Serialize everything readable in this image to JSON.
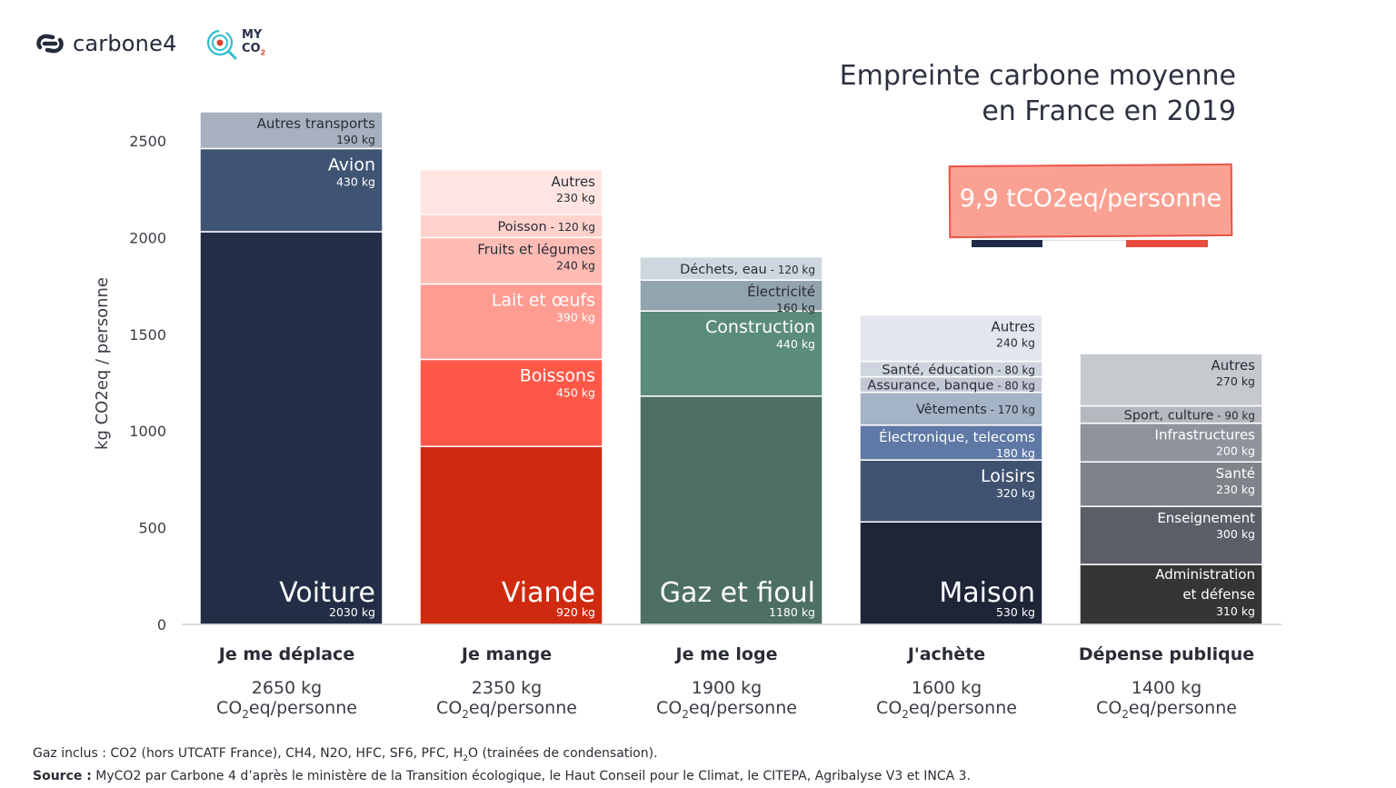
{
  "brand": {
    "logo1": "carbone4",
    "logo2_line1": "MY",
    "logo2_line2": "CO",
    "logo2_sub": "2"
  },
  "title_line1": "Empreinte carbone moyenne",
  "title_line2": "en France en 2019",
  "total_badge": "9,9 tCO2eq/personne",
  "colors": {
    "voiture": "#232e46",
    "avion": "#3f5473",
    "autres_transports": "#a7b0be",
    "viande": "#cf2a10",
    "boissons": "#ff5849",
    "lait": "#ff9c92",
    "fruits": "#ffbcb5",
    "poisson": "#ffd2cd",
    "autres_mange": "#ffe5e1",
    "gaz": "#4e6f64",
    "construction": "#5b8b7c",
    "electricite": "#92a4ad",
    "dechets": "#ced7dd",
    "maison": "#1e2536",
    "loisirs": "#3f5270",
    "electronique": "#5f79a6",
    "vetements": "#a4b3c5",
    "assurance": "#c1c8d4",
    "sante_educ": "#ced5df",
    "autres_achete": "#e3e6ec",
    "admin": "#353535",
    "enseignement": "#5b5e66",
    "sante": "#7f838a",
    "infrastructures": "#8e939c",
    "sport": "#b5b8bf",
    "autres_public": "#c6c9ce",
    "flag_blue": "#1f2a48",
    "flag_white": "#ffffff",
    "flag_red": "#e74c3c"
  },
  "chart_data": {
    "type": "bar",
    "stacked": true,
    "ylabel": "kg CO2eq / personne",
    "ylim": [
      0,
      2650
    ],
    "yticks": [
      0,
      500,
      1000,
      1500,
      2000,
      2500
    ],
    "grid": false,
    "categories": [
      "Je me déplace",
      "Je mange",
      "Je me loge",
      "J'achète",
      "Dépense publique"
    ],
    "totals": [
      {
        "line1": "2650 kg",
        "line2_pre": "CO",
        "line2_sub": "2",
        "line2_post": "eq/personne"
      },
      {
        "line1": "2350 kg",
        "line2_pre": "CO",
        "line2_sub": "2",
        "line2_post": "eq/personne"
      },
      {
        "line1": "1900 kg",
        "line2_pre": "CO",
        "line2_sub": "2",
        "line2_post": "eq/personne"
      },
      {
        "line1": "1600 kg",
        "line2_pre": "CO",
        "line2_sub": "2",
        "line2_post": "eq/personne"
      },
      {
        "line1": "1400 kg",
        "line2_pre": "CO",
        "line2_sub": "2",
        "line2_post": "eq/personne"
      }
    ],
    "stacks": [
      [
        {
          "name": "Voiture",
          "value": 2030,
          "value_label": "2030 kg",
          "color": "voiture",
          "style": "big"
        },
        {
          "name": "Avion",
          "value": 430,
          "value_label": "430 kg",
          "color": "avion",
          "style": "medium"
        },
        {
          "name": "Autres transports",
          "value": 190,
          "value_label": "190 kg",
          "color": "autres_transports",
          "style": "small-dark"
        }
      ],
      [
        {
          "name": "Viande",
          "value": 920,
          "value_label": "920 kg",
          "color": "viande",
          "style": "big"
        },
        {
          "name": "Boissons",
          "value": 450,
          "value_label": "450 kg",
          "color": "boissons",
          "style": "medium"
        },
        {
          "name": "Lait et œufs",
          "value": 390,
          "value_label": "390 kg",
          "color": "lait",
          "style": "medium"
        },
        {
          "name": "Fruits et légumes",
          "value": 240,
          "value_label": "240 kg",
          "color": "fruits",
          "style": "small-dark"
        },
        {
          "name": "Poisson",
          "value": 120,
          "value_label": "120 kg",
          "color": "poisson",
          "style": "inline-dark"
        },
        {
          "name": "Autres",
          "value": 230,
          "value_label": "230 kg",
          "color": "autres_mange",
          "style": "small-dark"
        }
      ],
      [
        {
          "name": "Gaz et fioul",
          "value": 1180,
          "value_label": "1180 kg",
          "color": "gaz",
          "style": "big"
        },
        {
          "name": "Construction",
          "value": 440,
          "value_label": "440 kg",
          "color": "construction",
          "style": "medium"
        },
        {
          "name": "Électricité",
          "value": 160,
          "value_label": "160 kg",
          "color": "electricite",
          "style": "small-dark"
        },
        {
          "name": "Déchets, eau",
          "value": 120,
          "value_label": "120 kg",
          "color": "dechets",
          "style": "inline-dark"
        }
      ],
      [
        {
          "name": "Maison",
          "value": 530,
          "value_label": "530 kg",
          "color": "maison",
          "style": "big"
        },
        {
          "name": "Loisirs",
          "value": 320,
          "value_label": "320 kg",
          "color": "loisirs",
          "style": "medium"
        },
        {
          "name": "Électronique, telecoms",
          "value": 180,
          "value_label": "180 kg",
          "color": "electronique",
          "style": "small-light"
        },
        {
          "name": "Vêtements",
          "value": 170,
          "value_label": "170 kg",
          "color": "vetements",
          "style": "inline-dark"
        },
        {
          "name": "Assurance, banque",
          "value": 80,
          "value_label": "80 kg",
          "color": "assurance",
          "style": "inline-dark"
        },
        {
          "name": "Santé, éducation",
          "value": 80,
          "value_label": "80 kg",
          "color": "sante_educ",
          "style": "inline-dark"
        },
        {
          "name": "Autres",
          "value": 240,
          "value_label": "240 kg",
          "color": "autres_achete",
          "style": "small-dark"
        }
      ],
      [
        {
          "name": "Administration et défense",
          "value": 310,
          "value_label": "310 kg",
          "color": "admin",
          "style": "small-light-2line"
        },
        {
          "name": "Enseignement",
          "value": 300,
          "value_label": "300 kg",
          "color": "enseignement",
          "style": "small-light"
        },
        {
          "name": "Santé",
          "value": 230,
          "value_label": "230 kg",
          "color": "sante",
          "style": "small-light"
        },
        {
          "name": "Infrastructures",
          "value": 200,
          "value_label": "200 kg",
          "color": "infrastructures",
          "style": "small-light"
        },
        {
          "name": "Sport, culture",
          "value": 90,
          "value_label": "90 kg",
          "color": "sport",
          "style": "inline-dark"
        },
        {
          "name": "Autres",
          "value": 270,
          "value_label": "270 kg",
          "color": "autres_public",
          "style": "small-dark"
        }
      ]
    ]
  },
  "footer": {
    "line1": "Gaz inclus : CO2 (hors UTCATF France), CH4, N2O, HFC, SF6, PFC, H",
    "line1_sub": "2",
    "line1_end": "O (trainées de condensation).",
    "line2_bold": "Source :",
    "line2": " MyCO2 par Carbone 4 d’après le ministère de la Transition écologique, le Haut Conseil pour le Climat, le CITEPA, Agribalyse V3 et INCA 3."
  }
}
